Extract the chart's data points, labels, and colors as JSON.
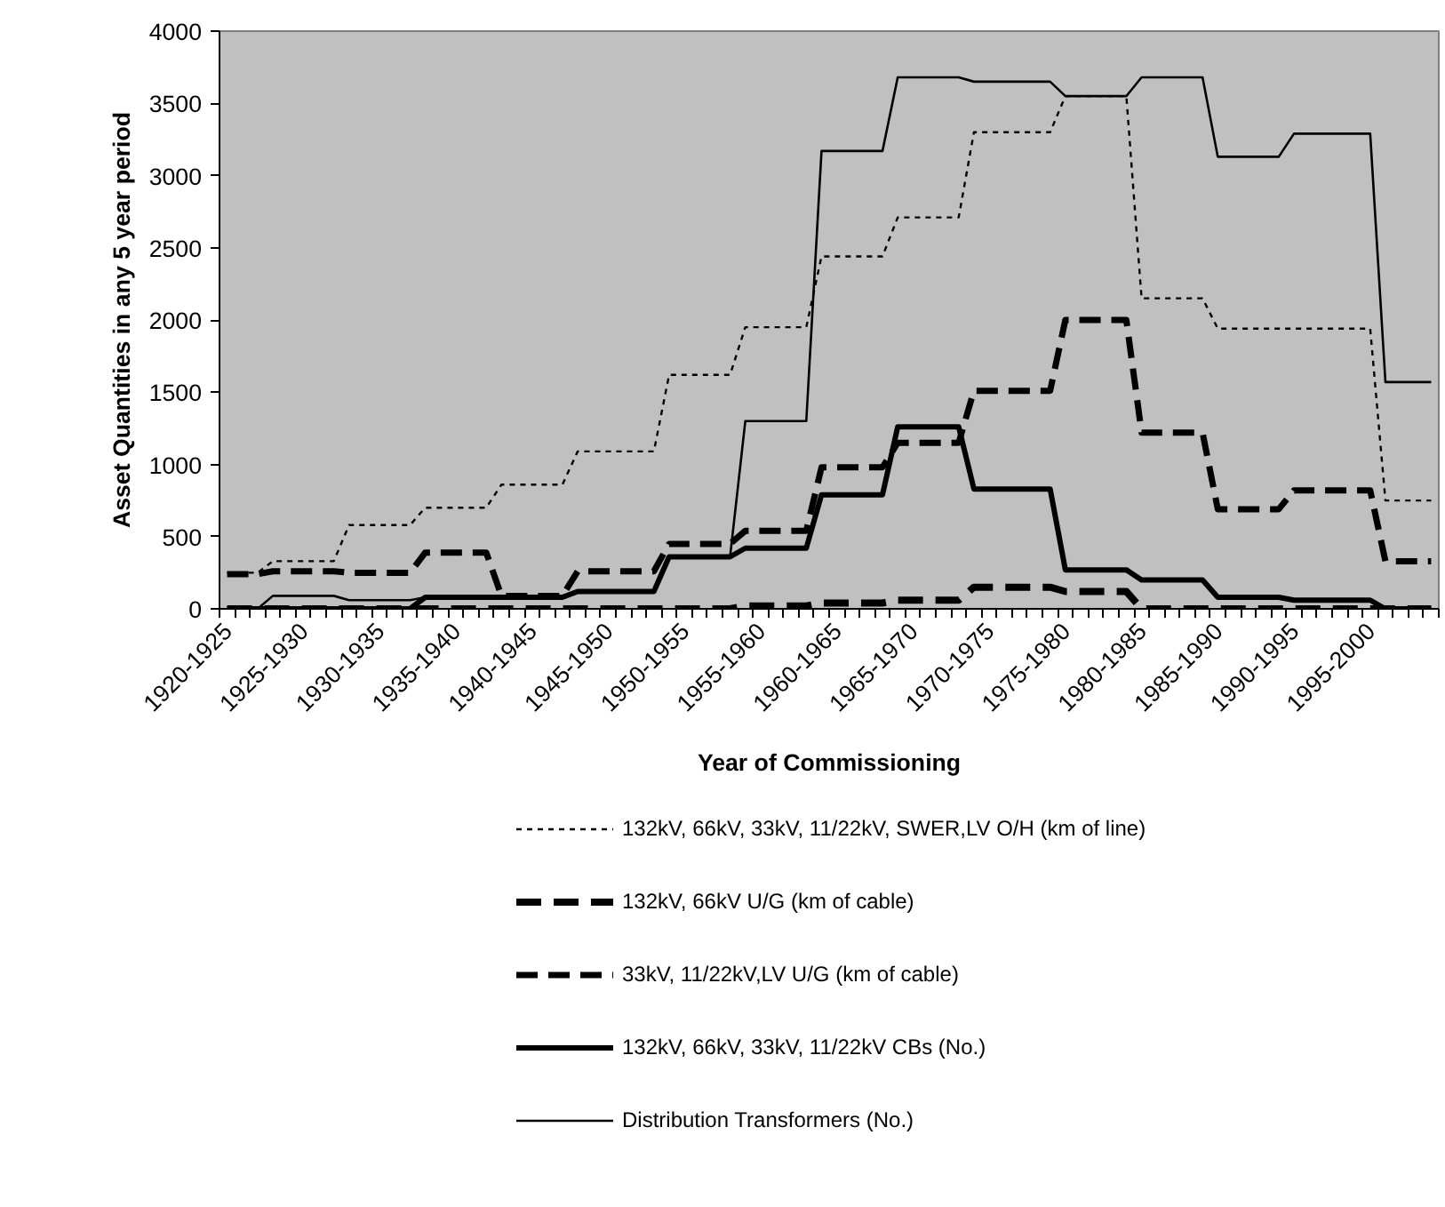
{
  "chart_data": {
    "type": "line",
    "xlabel": "Year of Commissioning",
    "ylabel": "Asset Quantities in any 5 year period",
    "categories": [
      "1920-1925",
      null,
      null,
      null,
      null,
      "1925-1930",
      null,
      null,
      null,
      null,
      "1930-1935",
      null,
      null,
      null,
      null,
      "1935-1940",
      null,
      null,
      null,
      null,
      "1940-1945",
      null,
      null,
      null,
      null,
      "1945-1950",
      null,
      null,
      null,
      null,
      "1950-1955",
      null,
      null,
      null,
      null,
      "1955-1960",
      null,
      null,
      null,
      null,
      "1960-1965",
      null,
      null,
      null,
      null,
      "1965-1970",
      null,
      null,
      null,
      null,
      "1970-1975",
      null,
      null,
      null,
      null,
      "1975-1980",
      null,
      null,
      null,
      null,
      "1980-1985",
      null,
      null,
      null,
      null,
      "1985-1990",
      null,
      null,
      null,
      null,
      "1990-1995",
      null,
      null,
      null,
      null,
      "1995-2000",
      null,
      null,
      null,
      null
    ],
    "ylim": [
      0,
      4000
    ],
    "yticks": [
      0,
      500,
      1000,
      1500,
      2000,
      2500,
      3000,
      3500,
      4000
    ],
    "grid": false,
    "legend": "bottom",
    "marker": "none",
    "series": [
      {
        "name": "132kV, 66kV, 33kV, 11/22kV, SWER,LV O/H (km of line)",
        "color": "#000000",
        "line_style": "dotted",
        "values": [
          250,
          250,
          250,
          330,
          330,
          330,
          330,
          330,
          580,
          580,
          580,
          580,
          580,
          700,
          700,
          700,
          700,
          700,
          860,
          860,
          860,
          860,
          860,
          1090,
          1090,
          1090,
          1090,
          1090,
          1090,
          1620,
          1620,
          1620,
          1620,
          1620,
          1950,
          1950,
          1950,
          1950,
          1950,
          2440,
          2440,
          2440,
          2440,
          2440,
          2710,
          2710,
          2710,
          2710,
          2710,
          3300,
          3300,
          3300,
          3300,
          3300,
          3300,
          3550,
          3550,
          3550,
          3550,
          3550,
          2150,
          2150,
          2150,
          2150,
          2150,
          1940,
          1940,
          1940,
          1940,
          1940,
          1940,
          1940,
          1940,
          1940,
          1940,
          1940,
          750,
          750,
          750,
          750
        ]
      },
      {
        "name": "132kV, 66kV U/G (km of cable)",
        "color": "#000000",
        "line_style": "dashed",
        "values": [
          0,
          0,
          0,
          0,
          0,
          0,
          0,
          0,
          0,
          0,
          0,
          0,
          0,
          0,
          0,
          0,
          0,
          0,
          0,
          0,
          0,
          0,
          0,
          0,
          0,
          0,
          0,
          0,
          0,
          0,
          0,
          0,
          0,
          0,
          20,
          20,
          20,
          20,
          20,
          40,
          40,
          40,
          40,
          40,
          60,
          60,
          60,
          60,
          60,
          150,
          150,
          150,
          150,
          150,
          150,
          120,
          120,
          120,
          120,
          120,
          0,
          0,
          0,
          0,
          0,
          0,
          0,
          0,
          0,
          0,
          0,
          0,
          0,
          0,
          0,
          0,
          0,
          0,
          0,
          0
        ]
      },
      {
        "name": "33kV, 11/22kV,LV U/G (km of cable)",
        "color": "#000000",
        "line_style": "dashed",
        "values": [
          240,
          240,
          240,
          260,
          260,
          260,
          260,
          260,
          250,
          250,
          250,
          250,
          250,
          390,
          390,
          390,
          390,
          390,
          90,
          90,
          90,
          90,
          90,
          260,
          260,
          260,
          260,
          260,
          260,
          450,
          450,
          450,
          450,
          450,
          540,
          540,
          540,
          540,
          540,
          980,
          980,
          980,
          980,
          980,
          1150,
          1150,
          1150,
          1150,
          1150,
          1510,
          1510,
          1510,
          1510,
          1510,
          1510,
          2000,
          2000,
          2000,
          2000,
          2000,
          1220,
          1220,
          1220,
          1220,
          1220,
          690,
          690,
          690,
          690,
          690,
          820,
          820,
          820,
          820,
          820,
          820,
          330,
          330,
          330,
          330
        ]
      },
      {
        "name": "132kV, 66kV, 33kV, 11/22kV CBs (No.)",
        "color": "#000000",
        "line_style": "solid",
        "values": [
          0,
          0,
          0,
          0,
          0,
          0,
          0,
          0,
          0,
          0,
          0,
          0,
          0,
          80,
          80,
          80,
          80,
          80,
          80,
          80,
          80,
          80,
          80,
          120,
          120,
          120,
          120,
          120,
          120,
          360,
          360,
          360,
          360,
          360,
          420,
          420,
          420,
          420,
          420,
          790,
          790,
          790,
          790,
          790,
          1260,
          1260,
          1260,
          1260,
          1260,
          830,
          830,
          830,
          830,
          830,
          830,
          270,
          270,
          270,
          270,
          270,
          200,
          200,
          200,
          200,
          200,
          80,
          80,
          80,
          80,
          80,
          60,
          60,
          60,
          60,
          60,
          60,
          0,
          0,
          0,
          0
        ]
      },
      {
        "name": "Distribution Transformers (No.)",
        "color": "#000000",
        "line_style": "solid",
        "values": [
          0,
          0,
          0,
          90,
          90,
          90,
          90,
          90,
          60,
          60,
          60,
          60,
          60,
          80,
          80,
          80,
          80,
          80,
          80,
          80,
          80,
          80,
          80,
          120,
          120,
          120,
          120,
          120,
          120,
          360,
          360,
          360,
          360,
          360,
          1300,
          1300,
          1300,
          1300,
          1300,
          3170,
          3170,
          3170,
          3170,
          3170,
          3680,
          3680,
          3680,
          3680,
          3680,
          3650,
          3650,
          3650,
          3650,
          3650,
          3650,
          3550,
          3550,
          3550,
          3550,
          3550,
          3680,
          3680,
          3680,
          3680,
          3680,
          3130,
          3130,
          3130,
          3130,
          3130,
          3290,
          3290,
          3290,
          3290,
          3290,
          3290,
          1570,
          1570,
          1570,
          1570
        ]
      }
    ]
  }
}
